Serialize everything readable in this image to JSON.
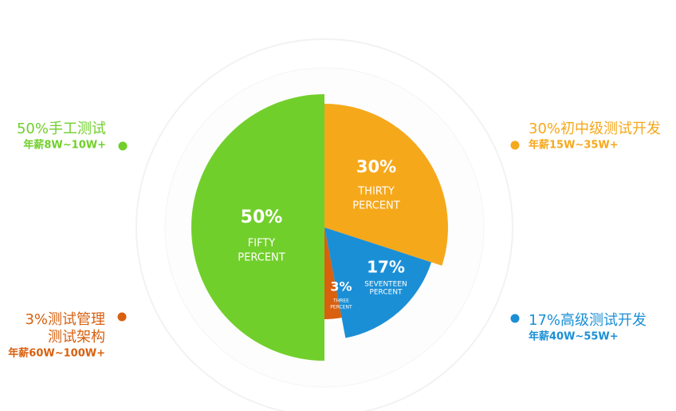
{
  "chart_data": {
    "type": "pie",
    "values": [
      30,
      17,
      3,
      50
    ],
    "value_labels": [
      "30%",
      "17%",
      "3%",
      "50%"
    ],
    "word_labels": [
      [
        "THIRTY",
        "PERCENT"
      ],
      [
        "SEVENTEEN",
        "PERCENT"
      ],
      [
        "THREE",
        "PERCENT"
      ],
      [
        "FIFTY",
        "PERCENT"
      ]
    ],
    "colors": [
      "#f6a81b",
      "#1b8fd6",
      "#d8600f",
      "#71cf2b"
    ],
    "legend": [
      {
        "title": [
          "30%初中级测试开发"
        ],
        "salary": "年薪15W~35W+"
      },
      {
        "title": [
          "17%高级测试开发"
        ],
        "salary": "年薪40W~55W+"
      },
      {
        "title": [
          "3%测试管理",
          "测试架构"
        ],
        "salary": "年薪60W~100W+"
      },
      {
        "title": [
          "50%手工测试"
        ],
        "salary": "年薪8W~10W+"
      }
    ]
  }
}
